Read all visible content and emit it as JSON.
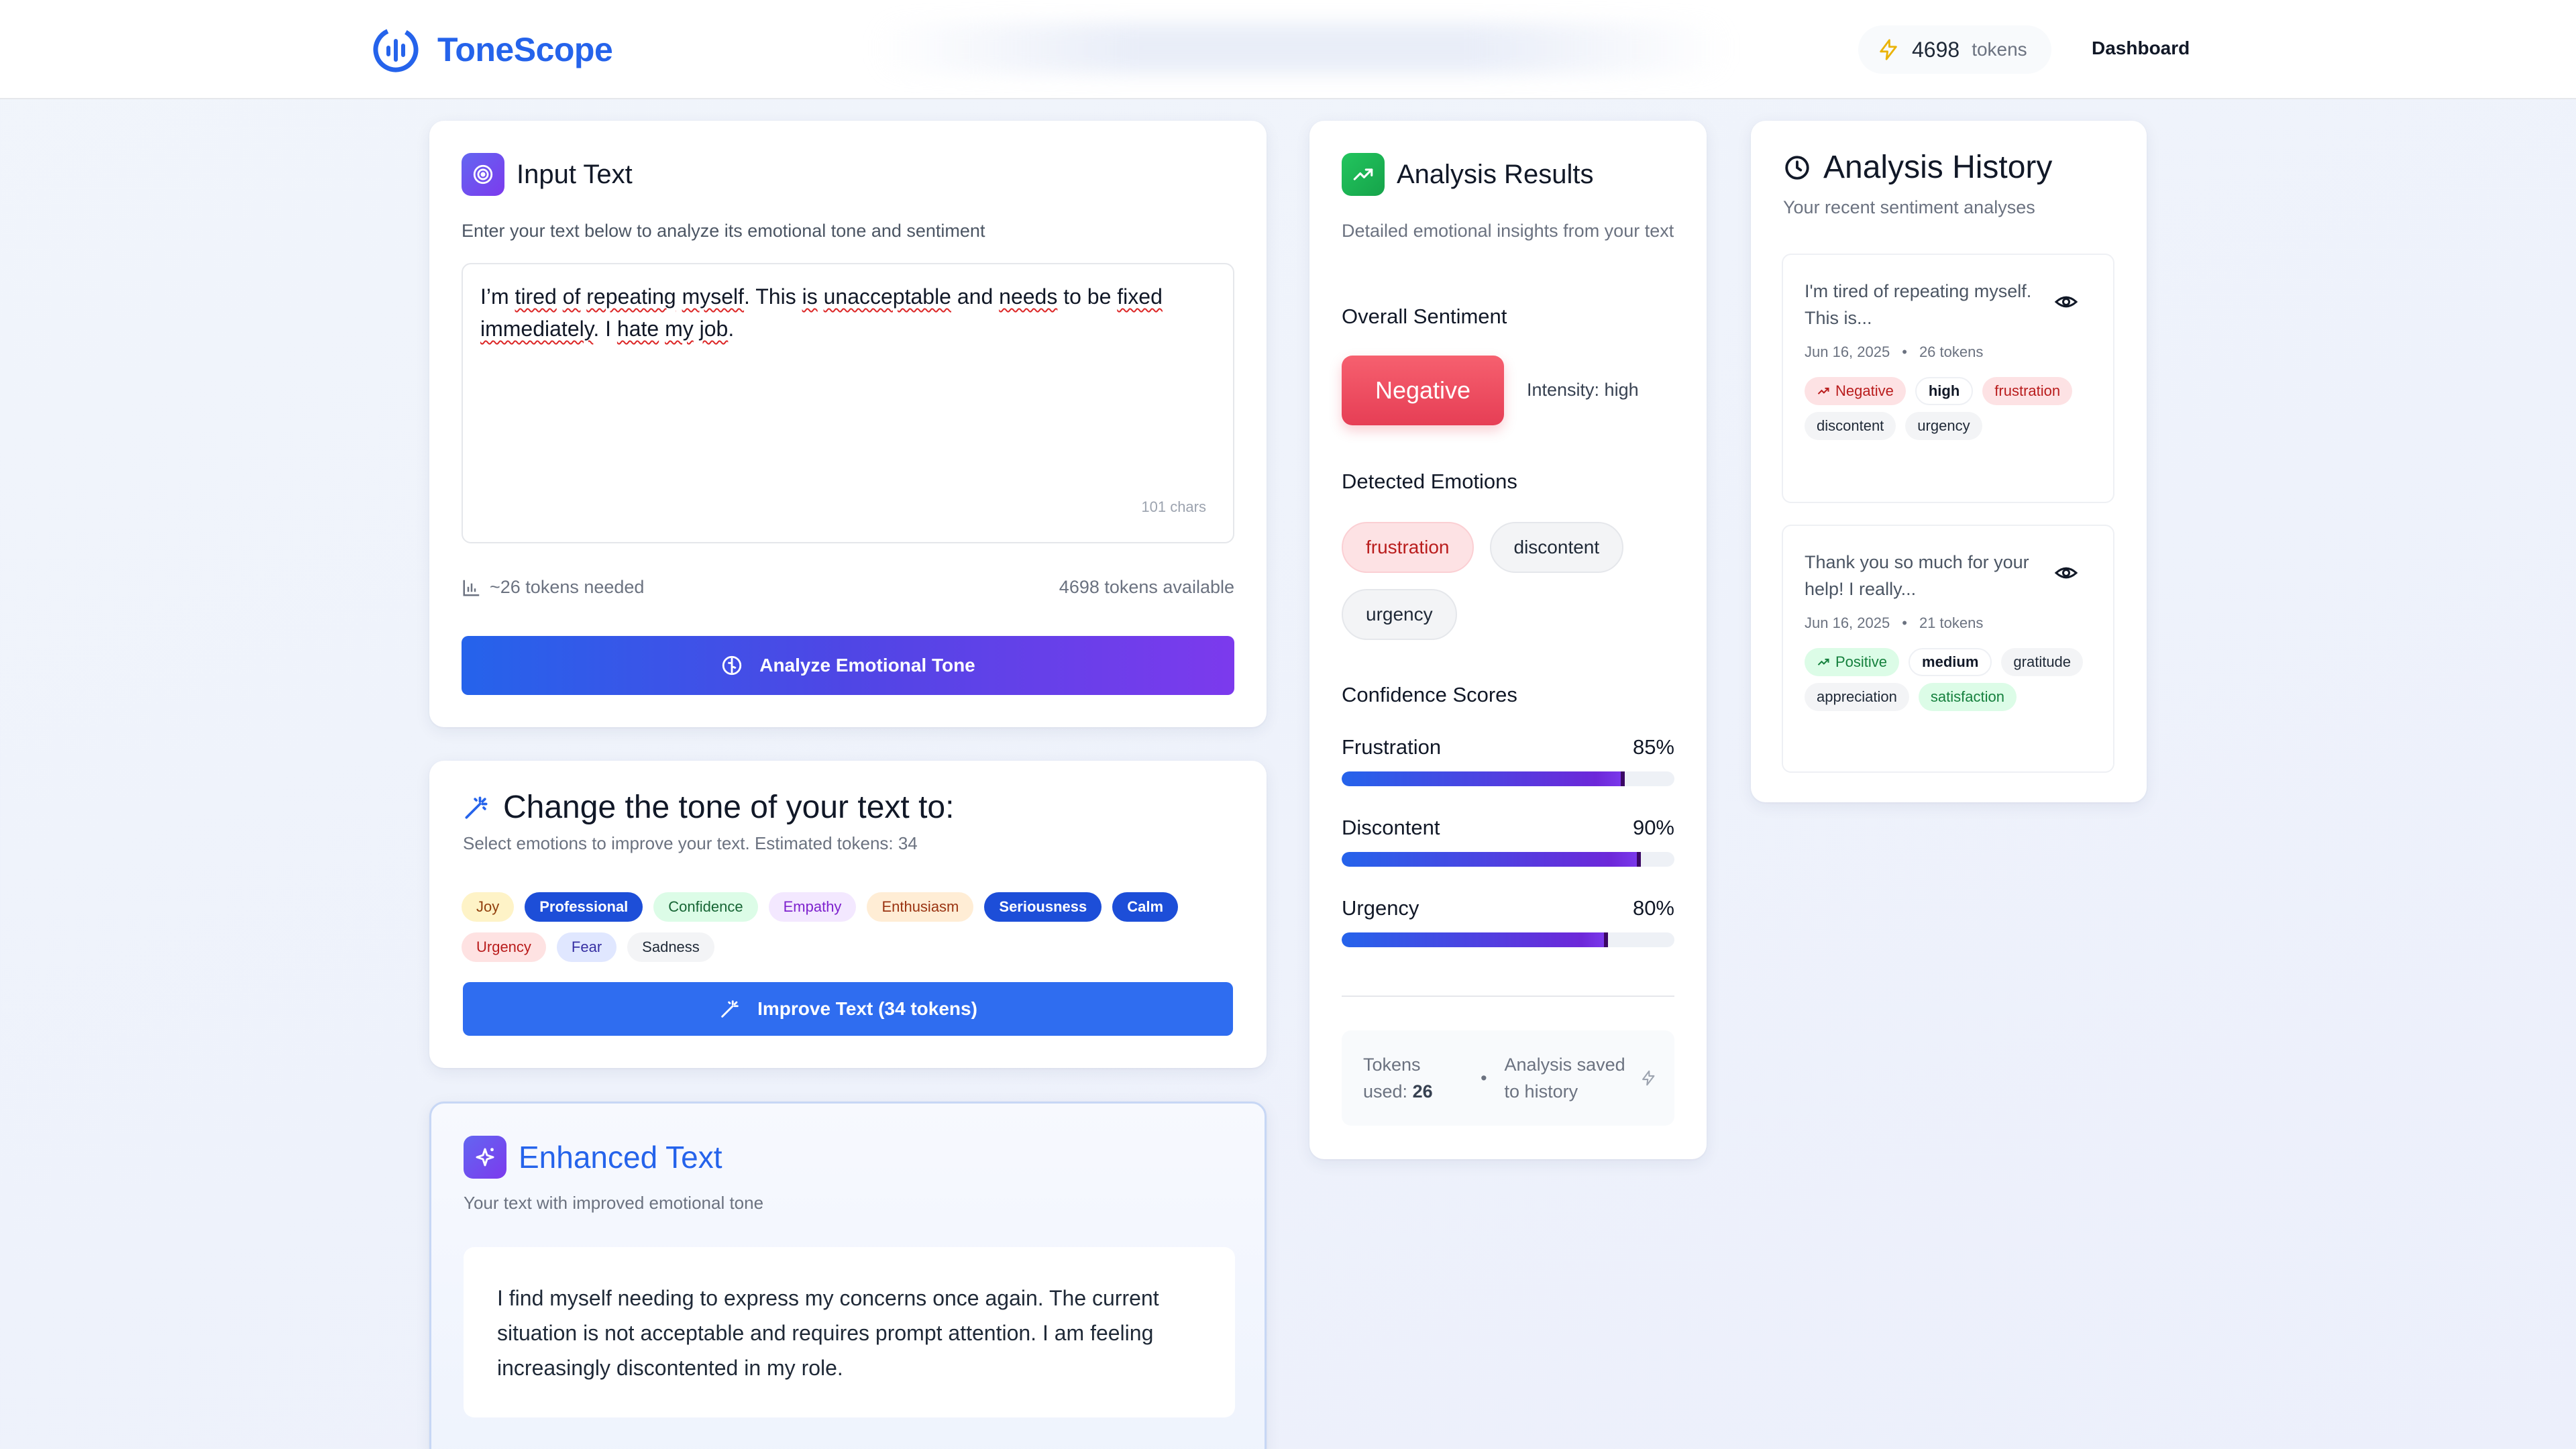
{
  "header": {
    "brand": "ToneScope",
    "token_count": "4698",
    "token_word": "tokens",
    "nav_dashboard": "Dashboard"
  },
  "input_card": {
    "title": "Input Text",
    "subtitle": "Enter your text below to analyze its emotional tone and sentiment",
    "text_segments": [
      {
        "t": "I’m ",
        "w": false
      },
      {
        "t": "tired",
        "w": true
      },
      {
        "t": " ",
        "w": false
      },
      {
        "t": "of",
        "w": true
      },
      {
        "t": " ",
        "w": false
      },
      {
        "t": "repeating",
        "w": true
      },
      {
        "t": " ",
        "w": false
      },
      {
        "t": "myself",
        "w": true
      },
      {
        "t": ". This ",
        "w": false
      },
      {
        "t": "is",
        "w": true
      },
      {
        "t": " ",
        "w": false
      },
      {
        "t": "unacceptable",
        "w": true
      },
      {
        "t": " and ",
        "w": false
      },
      {
        "t": "needs",
        "w": true
      },
      {
        "t": " to be ",
        "w": false
      },
      {
        "t": "fixed",
        "w": true
      },
      {
        "t": " ",
        "w": false
      },
      {
        "t": "immediately",
        "w": true
      },
      {
        "t": ". I ",
        "w": false
      },
      {
        "t": "hate",
        "w": true
      },
      {
        "t": " ",
        "w": false
      },
      {
        "t": "my",
        "w": true
      },
      {
        "t": " ",
        "w": false
      },
      {
        "t": "job",
        "w": true
      },
      {
        "t": ".",
        "w": false
      }
    ],
    "char_count": "101 chars",
    "tokens_needed": "~26 tokens needed",
    "tokens_available": "4698 tokens available",
    "analyze_button": "Analyze Emotional Tone"
  },
  "tone_card": {
    "title": "Change the tone of your text to:",
    "subtitle": "Select emotions to improve your text. Estimated tokens: 34",
    "chips": [
      {
        "label": "Joy",
        "selected": false,
        "bg": "#fef3c7",
        "fg": "#92400e"
      },
      {
        "label": "Professional",
        "selected": true,
        "bg": "#1d4ed8",
        "fg": "#ffffff"
      },
      {
        "label": "Confidence",
        "selected": false,
        "bg": "#dcfce7",
        "fg": "#166534"
      },
      {
        "label": "Empathy",
        "selected": false,
        "bg": "#f3e8ff",
        "fg": "#7e22ce"
      },
      {
        "label": "Enthusiasm",
        "selected": false,
        "bg": "#ffedd5",
        "fg": "#9a3412"
      },
      {
        "label": "Seriousness",
        "selected": true,
        "bg": "#1d4ed8",
        "fg": "#ffffff"
      },
      {
        "label": "Calm",
        "selected": true,
        "bg": "#1d4ed8",
        "fg": "#ffffff"
      },
      {
        "label": "Urgency",
        "selected": false,
        "bg": "#fee2e2",
        "fg": "#b91c1c"
      },
      {
        "label": "Fear",
        "selected": false,
        "bg": "#e0e7ff",
        "fg": "#3730a3"
      },
      {
        "label": "Sadness",
        "selected": false,
        "bg": "#f3f4f6",
        "fg": "#1f2937"
      }
    ],
    "improve_button": "Improve Text (34 tokens)"
  },
  "enhanced_card": {
    "title": "Enhanced Text",
    "subtitle": "Your text with improved emotional tone",
    "text": "I find myself needing to express my concerns once again. The current situation is not acceptable and requires prompt attention. I am feeling increasingly discontented in my role."
  },
  "results_card": {
    "title": "Analysis Results",
    "subtitle": "Detailed emotional insights from your text",
    "overall_label": "Overall Sentiment",
    "sentiment": "Negative",
    "intensity": "Intensity: high",
    "emotions_label": "Detected Emotions",
    "emotions": [
      {
        "label": "frustration",
        "bg": "#fde2e4",
        "fg": "#b91c1c",
        "border": "#fbcfd3"
      },
      {
        "label": "discontent",
        "bg": "#f3f4f6",
        "fg": "#1f2937",
        "border": "#e5e7eb"
      },
      {
        "label": "urgency",
        "bg": "#f3f4f6",
        "fg": "#1f2937",
        "border": "#e5e7eb"
      }
    ],
    "scores_label": "Confidence Scores",
    "scores": [
      {
        "name": "Frustration",
        "value": 85,
        "display": "85%"
      },
      {
        "name": "Discontent",
        "value": 90,
        "display": "90%"
      },
      {
        "name": "Urgency",
        "value": 80,
        "display": "80%"
      }
    ],
    "footer_tokens_label": "Tokens used:",
    "footer_tokens_value": "26",
    "footer_saved": "Analysis saved to history"
  },
  "history_card": {
    "title": "Analysis History",
    "subtitle": "Your recent sentiment analyses",
    "items": [
      {
        "text": "I'm tired of repeating myself. This is...",
        "date": "Jun 16, 2025",
        "tokens": "26 tokens",
        "sentiment": {
          "label": "Negative",
          "kind": "red"
        },
        "intensity": "high",
        "tags": [
          {
            "label": "frustration",
            "kind": "red"
          },
          {
            "label": "discontent",
            "kind": "gray"
          },
          {
            "label": "urgency",
            "kind": "gray"
          }
        ]
      },
      {
        "text": "Thank you so much for your help! I really...",
        "date": "Jun 16, 2025",
        "tokens": "21 tokens",
        "sentiment": {
          "label": "Positive",
          "kind": "green"
        },
        "intensity": "medium",
        "tags": [
          {
            "label": "gratitude",
            "kind": "gray"
          },
          {
            "label": "appreciation",
            "kind": "gray"
          },
          {
            "label": "satisfaction",
            "kind": "green"
          }
        ]
      }
    ]
  },
  "icons": {
    "brand": "brand-logo-icon",
    "tokens": "bolt-icon",
    "input": "target-icon",
    "analyze": "brain-icon",
    "tone": "wand-icon",
    "enhanced": "sparkles-icon",
    "results": "trending-up-icon",
    "history": "clock-icon",
    "view": "eye-icon"
  },
  "colors": {
    "accent": "#2563eb",
    "gradient_start": "#2563eb",
    "gradient_end": "#7c3aed",
    "negative": "#e63e55",
    "positive": "#15803d"
  }
}
